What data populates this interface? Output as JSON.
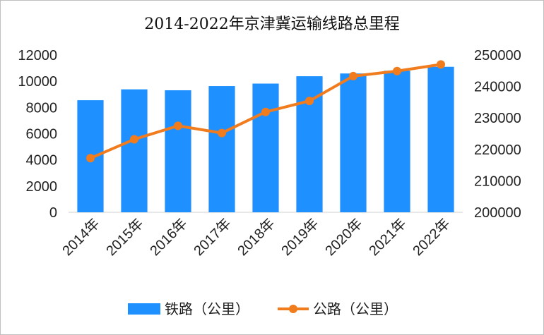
{
  "chart_data": {
    "type": "bar",
    "title": "2014-2022年京津冀运输线路总里程",
    "categories": [
      "2014年",
      "2015年",
      "2016年",
      "2017年",
      "2018年",
      "2019年",
      "2020年",
      "2021年",
      "2022年"
    ],
    "series": [
      {
        "name": "铁路（公里）",
        "type": "bar",
        "axis": "left",
        "color": "#1e90ff",
        "values": [
          8550,
          9380,
          9310,
          9630,
          9820,
          10380,
          10590,
          10800,
          11100
        ]
      },
      {
        "name": "公路（公里）",
        "type": "line",
        "axis": "right",
        "color": "#f07c1e",
        "values": [
          217200,
          223200,
          227500,
          225200,
          231900,
          235400,
          243300,
          244900,
          247000
        ]
      }
    ],
    "y_left": {
      "min": 0,
      "max": 12000,
      "step": 2000,
      "ticks": [
        "0",
        "2000",
        "4000",
        "6000",
        "8000",
        "10000",
        "12000"
      ]
    },
    "y_right": {
      "min": 200000,
      "max": 250000,
      "step": 10000,
      "ticks": [
        "200000",
        "210000",
        "220000",
        "230000",
        "240000",
        "250000"
      ]
    },
    "grid": false,
    "legend_position": "bottom"
  }
}
